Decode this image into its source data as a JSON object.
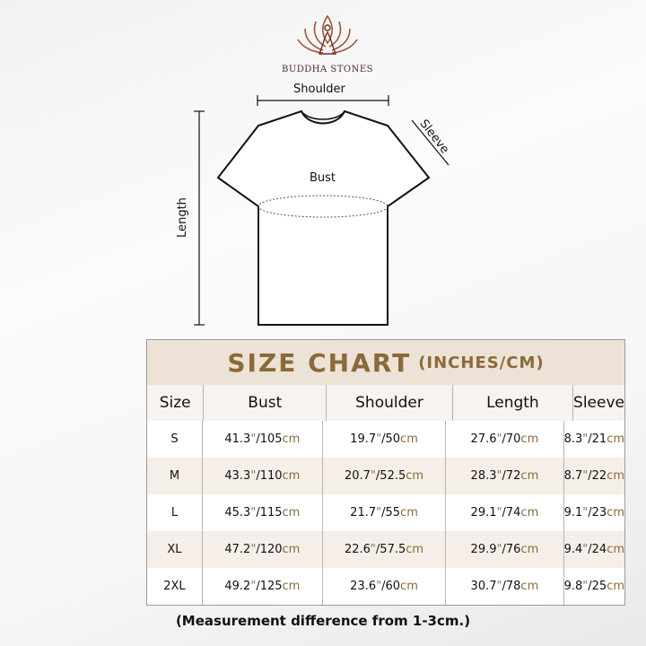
{
  "brand": {
    "name": "BUDDHA STONES",
    "accent": "#8a6a3a"
  },
  "diagram": {
    "shoulder": "Shoulder",
    "sleeve": "Sleeve",
    "bust": "Bust",
    "length": "Length"
  },
  "table": {
    "title": "SIZE CHART",
    "units": "(INCHES/CM)",
    "headers": [
      "Size",
      "Bust",
      "Shoulder",
      "Length",
      "Sleeve"
    ],
    "rows": [
      {
        "size": "S",
        "values": [
          [
            "41.3",
            "105"
          ],
          [
            "19.7",
            "50"
          ],
          [
            "27.6",
            "70"
          ],
          [
            "8.3",
            "21"
          ]
        ]
      },
      {
        "size": "M",
        "values": [
          [
            "43.3",
            "110"
          ],
          [
            "20.7",
            "52.5"
          ],
          [
            "28.3",
            "72"
          ],
          [
            "8.7",
            "22"
          ]
        ]
      },
      {
        "size": "L",
        "values": [
          [
            "45.3",
            "115"
          ],
          [
            "21.7",
            "55"
          ],
          [
            "29.1",
            "74"
          ],
          [
            "9.1",
            "23"
          ]
        ]
      },
      {
        "size": "XL",
        "values": [
          [
            "47.2",
            "120"
          ],
          [
            "22.6",
            "57.5"
          ],
          [
            "29.9",
            "76"
          ],
          [
            "9.4",
            "24"
          ]
        ]
      },
      {
        "size": "2XL",
        "values": [
          [
            "49.2",
            "125"
          ],
          [
            "23.6",
            "60"
          ],
          [
            "30.7",
            "78"
          ],
          [
            "9.8",
            "25"
          ]
        ]
      }
    ],
    "inch_mark": "\"",
    "cm_unit": "cm"
  },
  "note": "(Measurement difference from 1-3cm.)"
}
